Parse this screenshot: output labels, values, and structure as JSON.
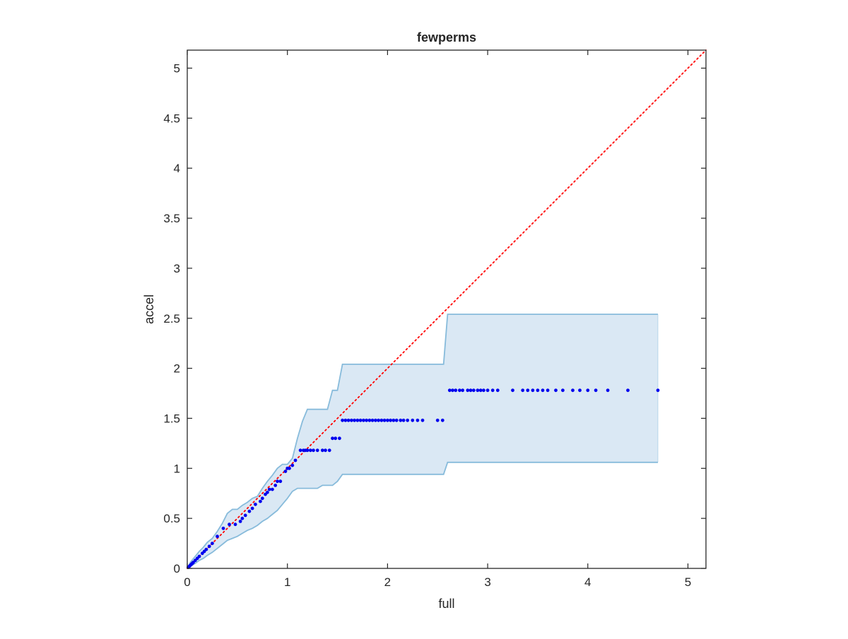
{
  "chart_data": {
    "type": "scatter",
    "title": "fewperms",
    "xlabel": "full",
    "ylabel": "accel",
    "xlim": [
      0,
      5.18
    ],
    "ylim": [
      0,
      5.18
    ],
    "xticks": [
      0,
      1,
      2,
      3,
      4,
      5
    ],
    "yticks": [
      0,
      0.5,
      1,
      1.5,
      2,
      2.5,
      3,
      3.5,
      4,
      4.5,
      5
    ],
    "xtick_labels": [
      "0",
      "1",
      "2",
      "3",
      "4",
      "5"
    ],
    "ytick_labels": [
      "0",
      "0.5",
      "1",
      "1.5",
      "2",
      "2.5",
      "3",
      "3.5",
      "4",
      "4.5",
      "5"
    ],
    "grid": false,
    "box": true,
    "colors": {
      "points": "#0000ee",
      "band_fill": "#dae8f4",
      "band_edge": "#87bbdb",
      "diagonal": "#ff0000",
      "axes": "#262626"
    },
    "reference_line": {
      "kind": "identity",
      "style": "dotted",
      "x": [
        0,
        5.18
      ],
      "y": [
        0,
        5.18
      ]
    },
    "band": {
      "x": [
        0,
        0.03,
        0.08,
        0.12,
        0.16,
        0.2,
        0.25,
        0.3,
        0.35,
        0.4,
        0.45,
        0.5,
        0.55,
        0.6,
        0.65,
        0.7,
        0.75,
        0.8,
        0.85,
        0.9,
        0.95,
        1.0,
        1.05,
        1.1,
        1.15,
        1.2,
        1.25,
        1.3,
        1.35,
        1.4,
        1.45,
        1.5,
        1.55,
        2.0,
        2.56,
        2.6,
        3.0,
        3.5,
        4.0,
        4.5,
        4.7
      ],
      "upper": [
        0.0,
        0.06,
        0.12,
        0.17,
        0.21,
        0.26,
        0.3,
        0.37,
        0.45,
        0.55,
        0.59,
        0.59,
        0.63,
        0.66,
        0.7,
        0.72,
        0.8,
        0.87,
        0.93,
        1.0,
        1.04,
        1.04,
        1.1,
        1.3,
        1.47,
        1.59,
        1.59,
        1.59,
        1.59,
        1.59,
        1.78,
        1.78,
        2.04,
        2.04,
        2.04,
        2.54,
        2.54,
        2.54,
        2.54,
        2.54,
        2.54
      ],
      "lower": [
        0.0,
        0.02,
        0.05,
        0.08,
        0.1,
        0.13,
        0.16,
        0.2,
        0.24,
        0.28,
        0.3,
        0.32,
        0.35,
        0.38,
        0.4,
        0.43,
        0.47,
        0.5,
        0.54,
        0.58,
        0.64,
        0.7,
        0.77,
        0.8,
        0.8,
        0.8,
        0.8,
        0.8,
        0.83,
        0.83,
        0.83,
        0.87,
        0.94,
        0.94,
        0.94,
        1.06,
        1.06,
        1.06,
        1.06,
        1.06,
        1.06
      ]
    },
    "points": {
      "x": [
        0.01,
        0.02,
        0.03,
        0.04,
        0.05,
        0.06,
        0.08,
        0.1,
        0.12,
        0.15,
        0.17,
        0.19,
        0.22,
        0.25,
        0.3,
        0.36,
        0.42,
        0.48,
        0.53,
        0.55,
        0.58,
        0.62,
        0.65,
        0.68,
        0.73,
        0.75,
        0.78,
        0.8,
        0.82,
        0.85,
        0.88,
        0.9,
        0.93,
        0.98,
        1.0,
        1.02,
        1.05,
        1.08,
        1.13,
        1.16,
        1.18,
        1.2,
        1.23,
        1.26,
        1.3,
        1.35,
        1.38,
        1.42,
        1.45,
        1.48,
        1.52,
        1.55,
        1.58,
        1.61,
        1.64,
        1.67,
        1.7,
        1.73,
        1.76,
        1.79,
        1.82,
        1.85,
        1.88,
        1.91,
        1.94,
        1.97,
        2.0,
        2.03,
        2.06,
        2.09,
        2.13,
        2.16,
        2.2,
        2.25,
        2.3,
        2.35,
        2.5,
        2.55,
        2.62,
        2.65,
        2.68,
        2.72,
        2.75,
        2.8,
        2.83,
        2.86,
        2.9,
        2.93,
        2.96,
        3.0,
        3.05,
        3.1,
        3.25,
        3.35,
        3.4,
        3.45,
        3.5,
        3.55,
        3.6,
        3.68,
        3.75,
        3.85,
        3.92,
        4.0,
        4.08,
        4.2,
        4.4,
        4.7
      ],
      "y": [
        0.01,
        0.02,
        0.03,
        0.04,
        0.05,
        0.06,
        0.08,
        0.1,
        0.12,
        0.15,
        0.17,
        0.19,
        0.22,
        0.25,
        0.32,
        0.4,
        0.44,
        0.44,
        0.47,
        0.5,
        0.53,
        0.57,
        0.6,
        0.64,
        0.67,
        0.7,
        0.74,
        0.76,
        0.79,
        0.79,
        0.83,
        0.87,
        0.87,
        0.97,
        1.0,
        1.0,
        1.03,
        1.08,
        1.18,
        1.18,
        1.18,
        1.18,
        1.18,
        1.18,
        1.18,
        1.18,
        1.18,
        1.18,
        1.3,
        1.3,
        1.3,
        1.48,
        1.48,
        1.48,
        1.48,
        1.48,
        1.48,
        1.48,
        1.48,
        1.48,
        1.48,
        1.48,
        1.48,
        1.48,
        1.48,
        1.48,
        1.48,
        1.48,
        1.48,
        1.48,
        1.48,
        1.48,
        1.48,
        1.48,
        1.48,
        1.48,
        1.48,
        1.48,
        1.78,
        1.78,
        1.78,
        1.78,
        1.78,
        1.78,
        1.78,
        1.78,
        1.78,
        1.78,
        1.78,
        1.78,
        1.78,
        1.78,
        1.78,
        1.78,
        1.78,
        1.78,
        1.78,
        1.78,
        1.78,
        1.78,
        1.78,
        1.78,
        1.78,
        1.78,
        1.78,
        1.78,
        1.78,
        1.78
      ]
    }
  }
}
